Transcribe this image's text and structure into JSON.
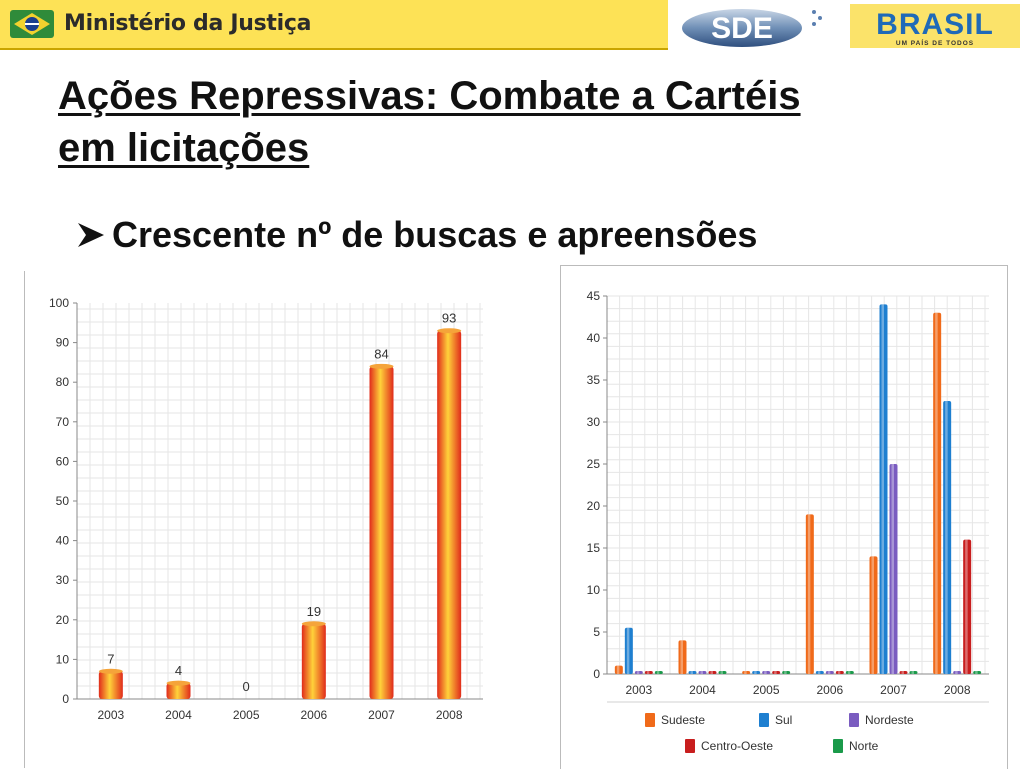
{
  "header": {
    "ministry_name": "Ministério da Justiça",
    "sde_logo_text": "SDE",
    "brasil_logo_text": "BRASIL",
    "brasil_slogan": "UM PAÍS DE TODOS"
  },
  "slide": {
    "title_line1": "Ações Repressivas: Combate a Cartéis",
    "title_line2": "em licitações",
    "bullet": "Crescente nº de buscas e apreensões"
  },
  "colors": {
    "header_yellow": "#fde256",
    "bar_orange": "#f07a1a",
    "bar_red": "#e02b1b",
    "grid": "#e6e6e6"
  },
  "chart_data": [
    {
      "type": "bar",
      "categories": [
        "2003",
        "2004",
        "2005",
        "2006",
        "2007",
        "2008"
      ],
      "values": [
        7,
        4,
        0,
        19,
        84,
        93
      ],
      "data_labels": [
        "7",
        "4",
        "0",
        "19",
        "84",
        "93"
      ],
      "yticks": [
        "0",
        "10",
        "20",
        "30",
        "40",
        "50",
        "60",
        "70",
        "80",
        "90",
        "100"
      ],
      "ylim": [
        0,
        100
      ],
      "grid": true,
      "colors": [
        "#f07a1a",
        "#ffd23a",
        "#e02b1b"
      ]
    },
    {
      "type": "bar",
      "categories": [
        "2003",
        "2004",
        "2005",
        "2006",
        "2007",
        "2008"
      ],
      "series": [
        {
          "name": "Sudeste",
          "values": [
            1,
            4,
            0,
            19,
            14,
            43
          ],
          "color": "#f06a1a"
        },
        {
          "name": "Sul",
          "values": [
            5.5,
            0,
            0,
            0,
            44,
            32.5
          ],
          "color": "#1e7fd0"
        },
        {
          "name": "Nordeste",
          "values": [
            0,
            0,
            0,
            0,
            25,
            0
          ],
          "color": "#7a5cc0"
        },
        {
          "name": "Centro-Oeste",
          "values": [
            0,
            0,
            0,
            0,
            0,
            16
          ],
          "color": "#c81e1e"
        },
        {
          "name": "Norte",
          "values": [
            0,
            0,
            0,
            0,
            0,
            0
          ],
          "color": "#1a9a4a"
        }
      ],
      "yticks": [
        "0",
        "5",
        "10",
        "15",
        "20",
        "25",
        "30",
        "35",
        "40",
        "45"
      ],
      "ylim": [
        0,
        45
      ],
      "grid": true,
      "legend_position": "bottom"
    }
  ]
}
